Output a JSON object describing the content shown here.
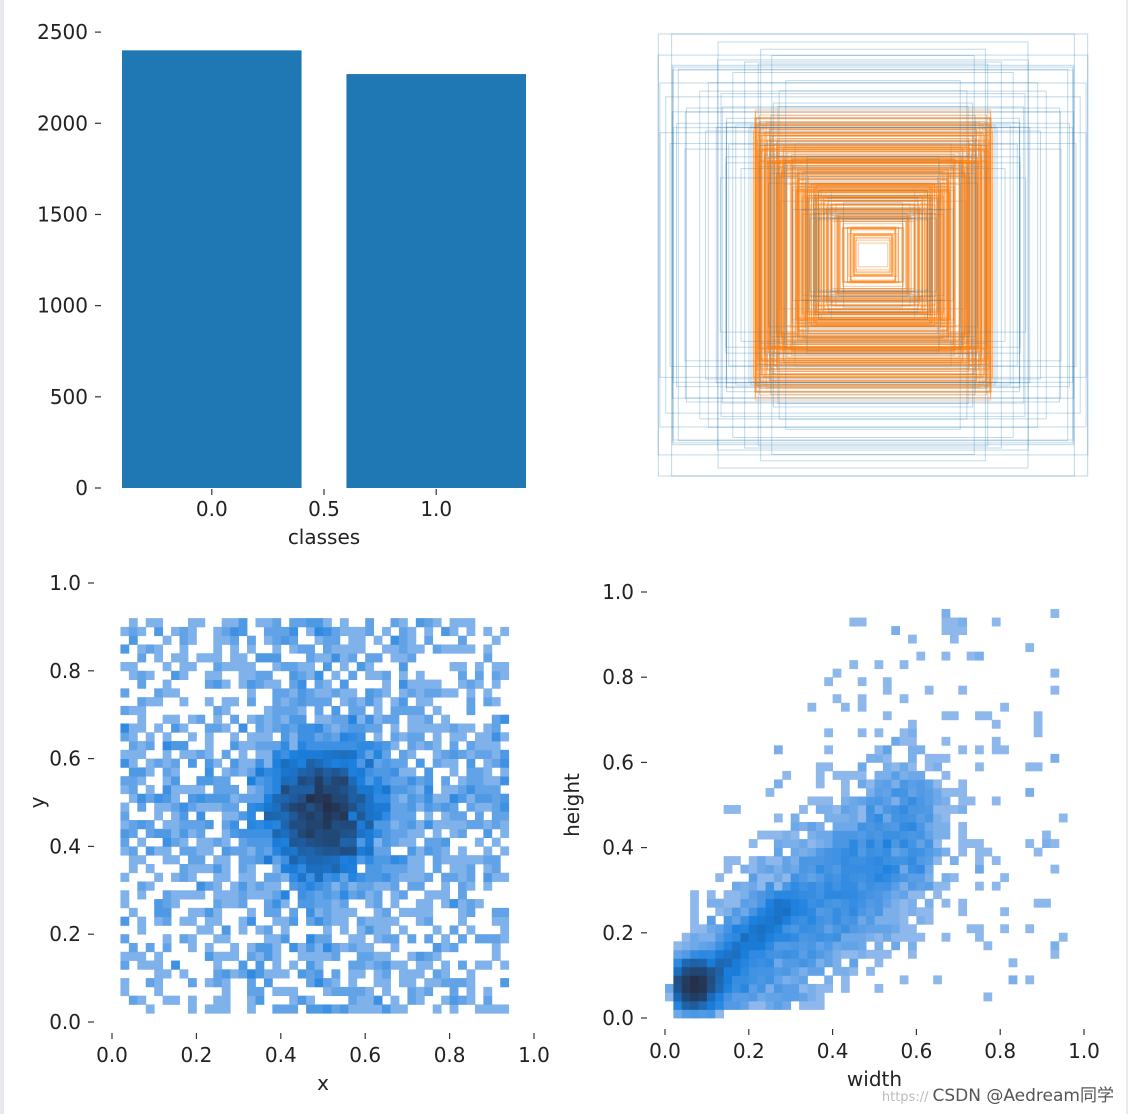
{
  "chart_data": [
    {
      "id": "classes",
      "type": "bar",
      "categories": [
        0.0,
        1.0
      ],
      "values": [
        2400,
        2270
      ],
      "xlabel": "classes",
      "ylabel": "",
      "xlim": [
        -0.4,
        1.4
      ],
      "ylim": [
        0,
        2550
      ],
      "xticks": [
        0.0,
        0.5,
        1.0
      ],
      "xtick_labels": [
        "0.0",
        "0.5",
        "1.0"
      ],
      "yticks": [
        0,
        500,
        1000,
        1500,
        2000,
        2500
      ],
      "ytick_labels": [
        "0",
        "500",
        "1000",
        "1500",
        "2000",
        "2500"
      ],
      "bar_width": 0.8,
      "color": "#1f77b4"
    },
    {
      "id": "boxes",
      "type": "other",
      "description_kind": "overlaid label boxes",
      "box_count": 300,
      "colors": [
        "#ff7f0e",
        "#1f77b4"
      ]
    },
    {
      "id": "xy",
      "type": "heatmap",
      "xlabel": "x",
      "ylabel": "y",
      "xlim": [
        0,
        1
      ],
      "ylim": [
        0,
        1
      ],
      "xticks": [
        0.0,
        0.2,
        0.4,
        0.6,
        0.8,
        1.0
      ],
      "xtick_labels": [
        "0.0",
        "0.2",
        "0.4",
        "0.6",
        "0.8",
        "1.0"
      ],
      "yticks": [
        0.0,
        0.2,
        0.4,
        0.6,
        0.8,
        1.0
      ],
      "ytick_labels": [
        "0.0",
        "0.2",
        "0.4",
        "0.6",
        "0.8",
        "1.0"
      ],
      "bins": 50,
      "center": [
        0.5,
        0.48
      ],
      "color": "#1a6fd1"
    },
    {
      "id": "wh",
      "type": "heatmap",
      "xlabel": "width",
      "ylabel": "height",
      "xlim": [
        0,
        1
      ],
      "ylim": [
        0,
        1
      ],
      "xticks": [
        0.0,
        0.2,
        0.4,
        0.6,
        0.8,
        1.0
      ],
      "xtick_labels": [
        "0.0",
        "0.2",
        "0.4",
        "0.6",
        "0.8",
        "1.0"
      ],
      "yticks": [
        0.0,
        0.2,
        0.4,
        0.6,
        0.8,
        1.0
      ],
      "ytick_labels": [
        "0.0",
        "0.2",
        "0.4",
        "0.6",
        "0.8",
        "1.0"
      ],
      "bins": 50,
      "dense_point": [
        0.07,
        0.08
      ],
      "color": "#1a6fd1"
    }
  ],
  "watermark": {
    "prefix": "https://",
    "text": "CSDN @Aedream同学"
  }
}
